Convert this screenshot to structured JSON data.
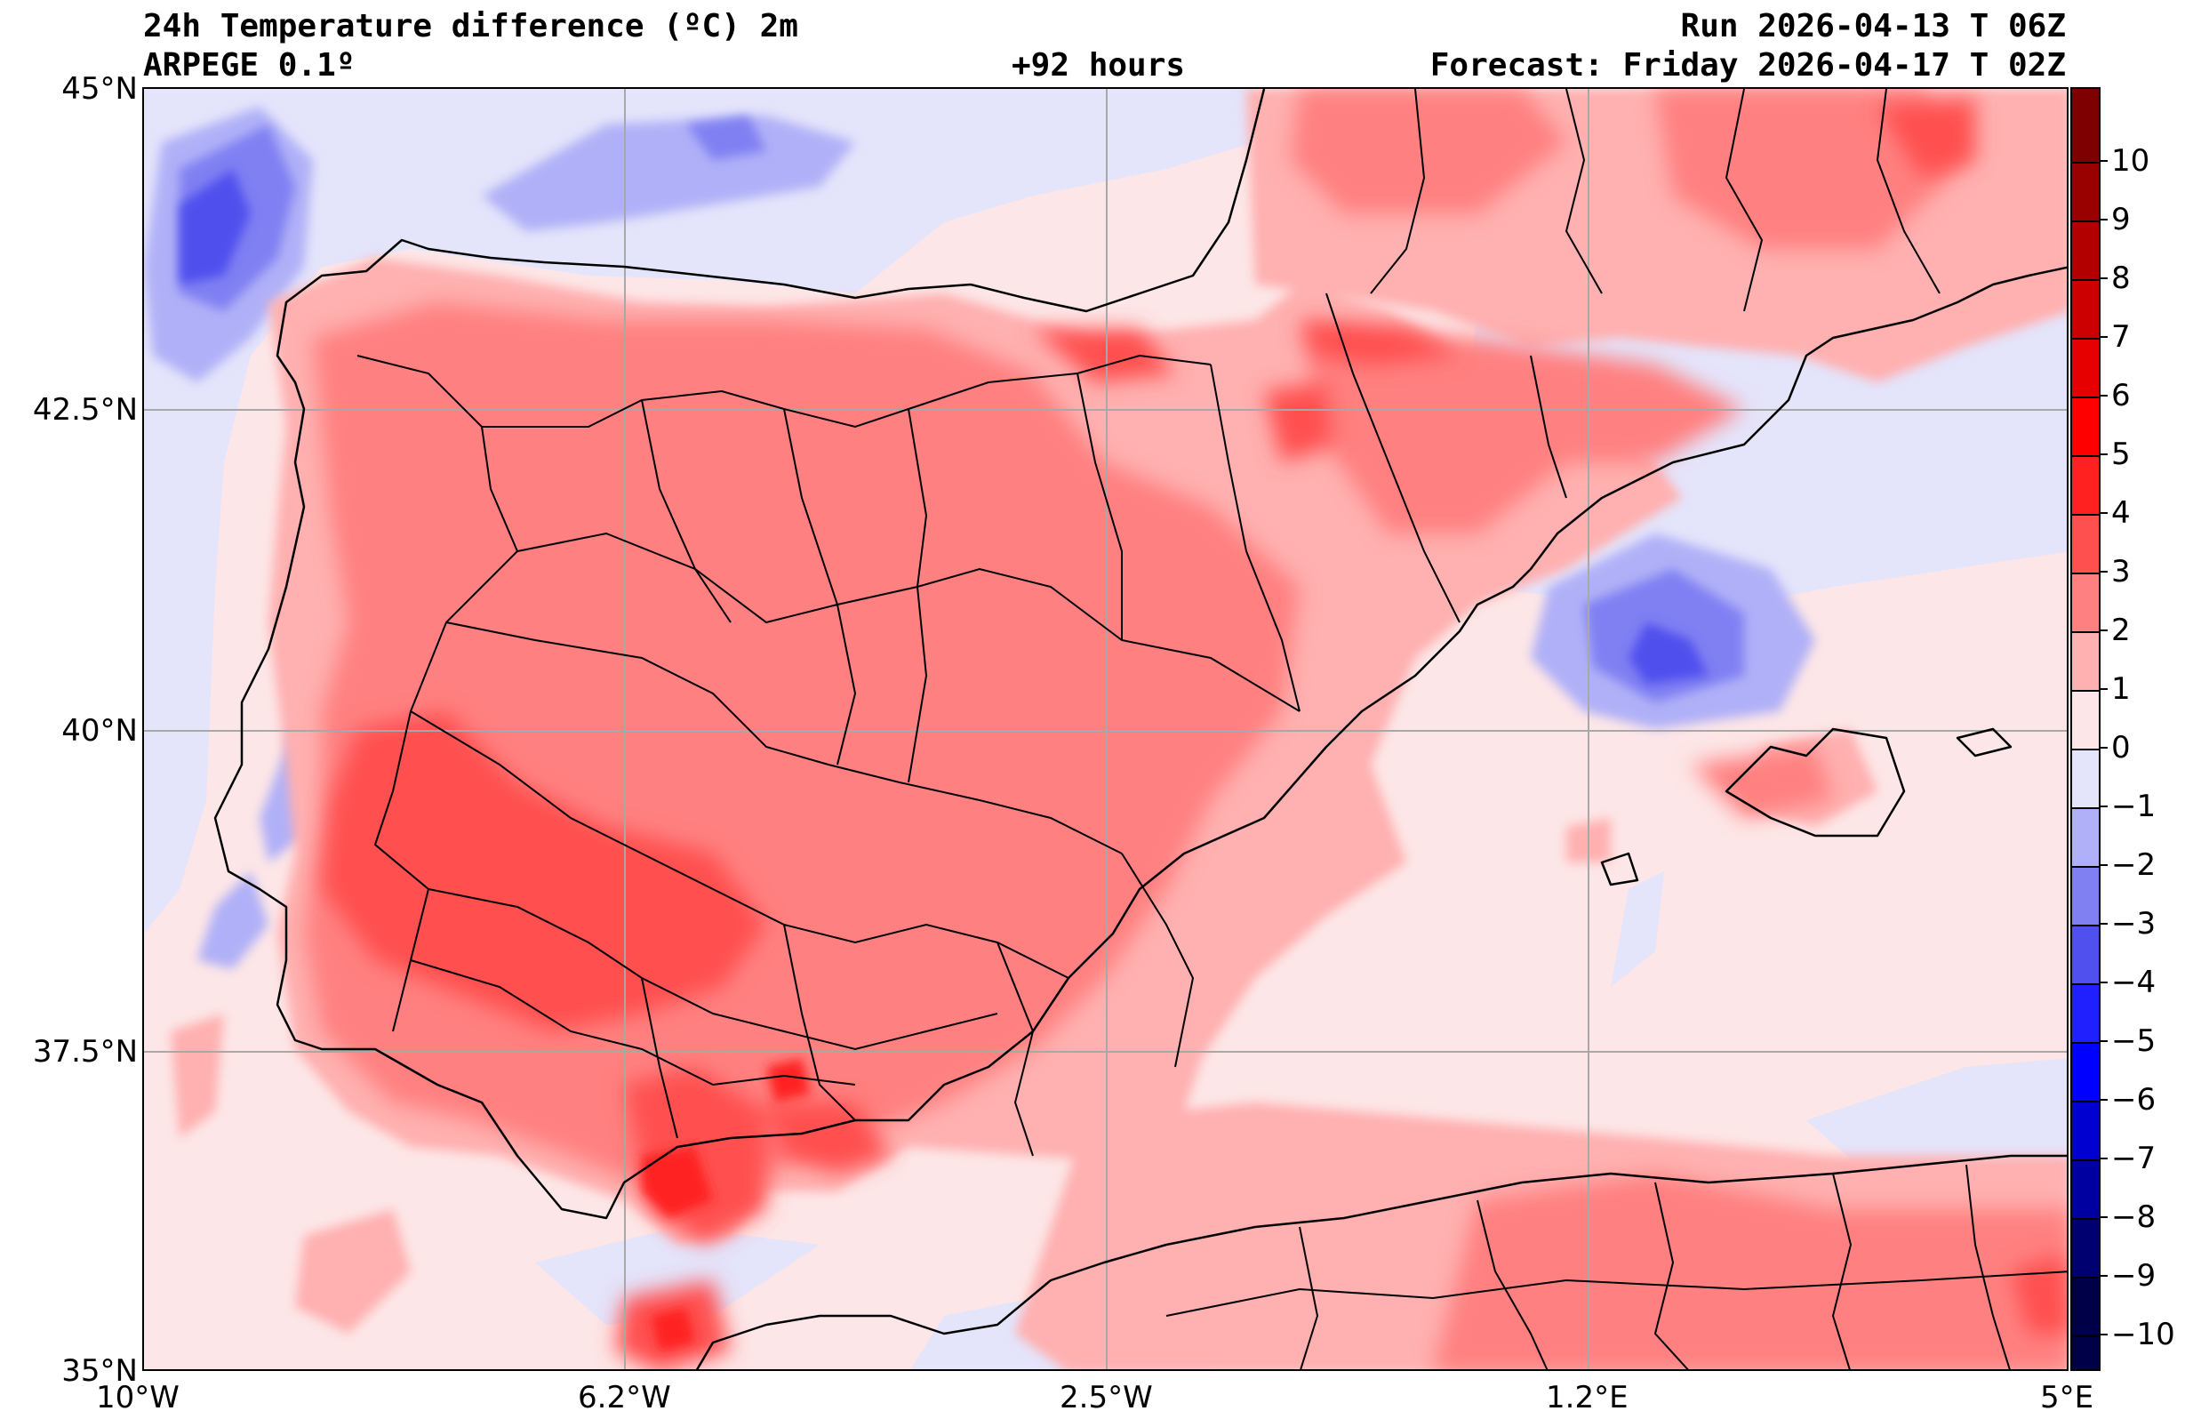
{
  "header": {
    "title": "24h Temperature difference (ºC) 2m",
    "model": "ARPEGE 0.1º",
    "lead_time": "+92 hours",
    "run": "Run 2026-04-13 T 06Z",
    "forecast": "Forecast: Friday 2026-04-17 T 02Z"
  },
  "axes": {
    "lat_labels": [
      "45°N",
      "42.5°N",
      "40°N",
      "37.5°N",
      "35°N"
    ],
    "lon_labels": [
      "10°W",
      "6.2°W",
      "2.5°W",
      "1.2°E",
      "5°E"
    ],
    "lat_values": [
      45,
      42.5,
      40,
      37.5,
      35
    ],
    "lon_values": [
      -10,
      -6.25,
      -2.5,
      1.25,
      5
    ],
    "lat_range": [
      35,
      45
    ],
    "lon_range": [
      -10,
      5
    ]
  },
  "colorbar": {
    "labels": [
      "10",
      "9",
      "8",
      "7",
      "6",
      "5",
      "4",
      "3",
      "2",
      "1",
      "0",
      "−1",
      "−2",
      "−3",
      "−4",
      "−5",
      "−6",
      "−7",
      "−8",
      "−9",
      "−10"
    ],
    "colors_top_to_bottom": [
      "#7f0000",
      "#990000",
      "#b20000",
      "#cc0000",
      "#e60000",
      "#ff0000",
      "#ff2020",
      "#ff5050",
      "#ff8080",
      "#ffb0b0",
      "#fde6e7",
      "#e4e4fb",
      "#b0b0f8",
      "#8080f3",
      "#5050ee",
      "#2020ff",
      "#0000ff",
      "#0000d0",
      "#0000a0",
      "#000070",
      "#000048"
    ]
  },
  "chart_data": {
    "type": "heatmap",
    "title": "24h Temperature difference (ºC) 2m",
    "x_range": [
      -10,
      5
    ],
    "y_range": [
      35,
      45
    ],
    "grid": true,
    "color_scale": "blue-white-red diverging, -10 to 10 ºC"
  },
  "regions": [
    {
      "name": "iberia-interior",
      "value": 2
    },
    {
      "name": "extremadura-andalusia",
      "value": 3
    },
    {
      "name": "strait-gibraltar",
      "value": 4
    },
    {
      "name": "balearic-sea",
      "value": -3
    },
    {
      "name": "bay-of-biscay-west",
      "value": -3
    },
    {
      "name": "north-africa",
      "value": 2
    },
    {
      "name": "mediterranean",
      "value": 0
    }
  ]
}
